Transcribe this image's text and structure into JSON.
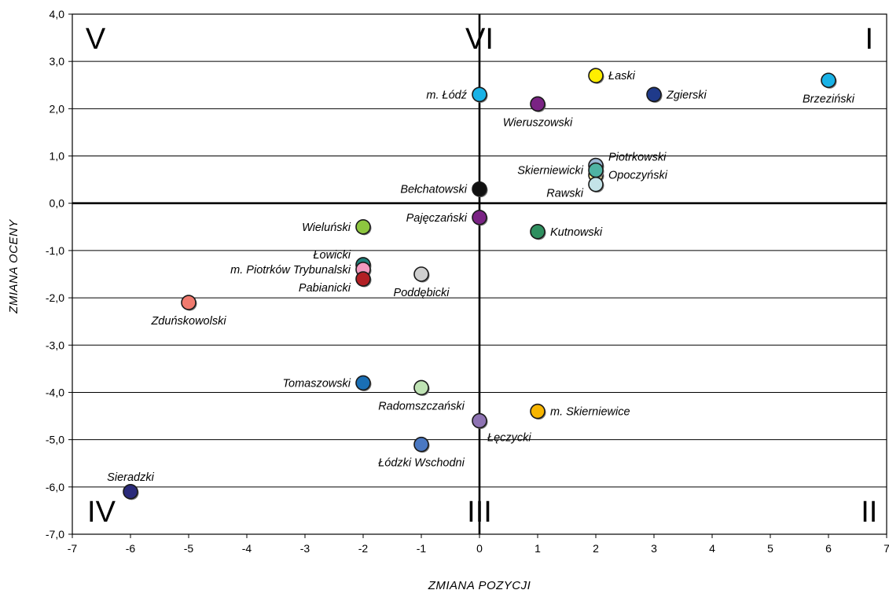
{
  "chart_data": {
    "type": "scatter",
    "xlabel": "ZMIANA POZYCJI",
    "ylabel": "ZMIANA OCENY",
    "xlim": [
      -7,
      7
    ],
    "ylim": [
      -7,
      4
    ],
    "xticks": [
      "-7",
      "-6",
      "-5",
      "-4",
      "-3",
      "-2",
      "-1",
      "0",
      "1",
      "2",
      "3",
      "4",
      "5",
      "6",
      "7"
    ],
    "yticks": [
      "4,0",
      "3,0",
      "2,0",
      "1,0",
      "0,0",
      "-1,0",
      "-2,0",
      "-3,0",
      "-4,0",
      "-5,0",
      "-6,0",
      "-7,0"
    ],
    "grid": "horizontal",
    "quadrants": [
      {
        "label": "I",
        "x": 6.7,
        "y": 3.5
      },
      {
        "label": "II",
        "x": 6.7,
        "y": -6.5
      },
      {
        "label": "III",
        "x": 0,
        "y": -6.5
      },
      {
        "label": "IV",
        "x": -6.5,
        "y": -6.5
      },
      {
        "label": "V",
        "x": -6.6,
        "y": 3.5
      },
      {
        "label": "VI",
        "x": 0,
        "y": 3.5
      }
    ],
    "points": [
      {
        "name": "Łaski",
        "x": 2,
        "y": 2.7,
        "color": "#ffee00",
        "label_pos": "right"
      },
      {
        "name": "Zgierski",
        "x": 3,
        "y": 2.3,
        "color": "#1f3a8a",
        "label_pos": "right"
      },
      {
        "name": "Brzeziński",
        "x": 6,
        "y": 2.6,
        "color": "#19b2e6",
        "label_pos": "below"
      },
      {
        "name": "m. Łódź",
        "x": 0,
        "y": 2.3,
        "color": "#19b2e6",
        "label_pos": "left"
      },
      {
        "name": "Wieruszowski",
        "x": 1,
        "y": 2.1,
        "color": "#7a2384",
        "label_pos": "below"
      },
      {
        "name": "Piotrkowski",
        "x": 2,
        "y": 0.8,
        "color": "#9bb7d4",
        "label_pos": "right-up"
      },
      {
        "name": "Opoczyński",
        "x": 2,
        "y": 0.6,
        "color": "#fff79a",
        "label_pos": "right"
      },
      {
        "name": "Skierniewicki",
        "x": 2,
        "y": 0.7,
        "color": "#4fb3a3",
        "label_pos": "left"
      },
      {
        "name": "Rawski",
        "x": 2,
        "y": 0.4,
        "color": "#c4e3e8",
        "label_pos": "left-down"
      },
      {
        "name": "Bełchatowski",
        "x": 0,
        "y": 0.3,
        "color": "#111111",
        "label_pos": "left"
      },
      {
        "name": "Pajęczański",
        "x": 0,
        "y": -0.3,
        "color": "#7a2384",
        "label_pos": "left"
      },
      {
        "name": "Kutnowski",
        "x": 1,
        "y": -0.6,
        "color": "#2f8f5f",
        "label_pos": "right"
      },
      {
        "name": "Wieluński",
        "x": -2,
        "y": -0.5,
        "color": "#8dc63f",
        "label_pos": "left"
      },
      {
        "name": "Łowicki",
        "x": -2,
        "y": -1.3,
        "color": "#1e7f7a",
        "label_pos": "left-up"
      },
      {
        "name": "m. Piotrków Trybunalski",
        "x": -2,
        "y": -1.4,
        "color": "#f39ac0",
        "label_pos": "left"
      },
      {
        "name": "Pabianicki",
        "x": -2,
        "y": -1.6,
        "color": "#b21f24",
        "label_pos": "left-down"
      },
      {
        "name": "Poddębicki",
        "x": -1,
        "y": -1.5,
        "color": "#cfcfcf",
        "label_pos": "below"
      },
      {
        "name": "Zduńskowolski",
        "x": -5,
        "y": -2.1,
        "color": "#f07a6e",
        "label_pos": "below"
      },
      {
        "name": "Tomaszowski",
        "x": -2,
        "y": -3.8,
        "color": "#1a6fb5",
        "label_pos": "left"
      },
      {
        "name": "Radomszczański",
        "x": -1,
        "y": -3.9,
        "color": "#bfe3b4",
        "label_pos": "below"
      },
      {
        "name": "m. Skierniewice",
        "x": 1,
        "y": -4.4,
        "color": "#f7b500",
        "label_pos": "right"
      },
      {
        "name": "Łęczycki",
        "x": 0,
        "y": -4.6,
        "color": "#8e73b3",
        "label_pos": "below-right"
      },
      {
        "name": "Łódzki Wschodni",
        "x": -1,
        "y": -5.1,
        "color": "#4a78c2",
        "label_pos": "below"
      },
      {
        "name": "Sieradzki",
        "x": -6,
        "y": -6.1,
        "color": "#2a2a7a",
        "label_pos": "above"
      }
    ]
  }
}
